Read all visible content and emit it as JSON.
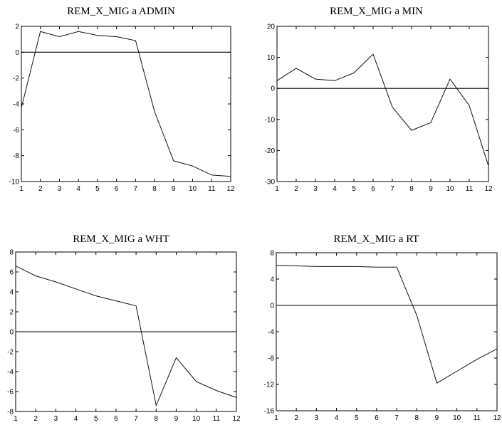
{
  "chart_data": [
    {
      "type": "line",
      "title": "REM_X_MIG a ADMIN",
      "x": [
        1,
        2,
        3,
        4,
        5,
        6,
        7,
        8,
        9,
        10,
        11,
        12
      ],
      "values": [
        -4.3,
        1.6,
        1.2,
        1.6,
        1.3,
        1.2,
        0.9,
        -4.6,
        -8.4,
        -8.8,
        -9.5,
        -9.6
      ],
      "ylim": [
        -10,
        2
      ],
      "yticks": [
        -10,
        -8,
        -6,
        -4,
        -2,
        0,
        2
      ],
      "xticks": [
        1,
        2,
        3,
        4,
        5,
        6,
        7,
        8,
        9,
        10,
        11,
        12
      ],
      "zero_line": true,
      "grid": false
    },
    {
      "type": "line",
      "title": "REM_X_MIG a MIN",
      "x": [
        1,
        2,
        3,
        4,
        5,
        6,
        7,
        8,
        9,
        10,
        11,
        12
      ],
      "values": [
        2.5,
        6.5,
        3.0,
        2.5,
        5.0,
        11.0,
        -6.0,
        -13.5,
        -11.0,
        3.0,
        -5.5,
        -25.0
      ],
      "ylim": [
        -30,
        20
      ],
      "yticks": [
        -30,
        -20,
        -10,
        0,
        10,
        20
      ],
      "xticks": [
        1,
        2,
        3,
        4,
        5,
        6,
        7,
        8,
        9,
        10,
        11,
        12
      ],
      "zero_line": true,
      "grid": false
    },
    {
      "type": "line",
      "title": "REM_X_MIG a WHT",
      "x": [
        1,
        2,
        3,
        4,
        5,
        6,
        7,
        8,
        9,
        10,
        11,
        12
      ],
      "values": [
        6.6,
        5.6,
        5.0,
        4.3,
        3.6,
        3.1,
        2.6,
        -7.4,
        -2.6,
        -5.0,
        -5.9,
        -6.6
      ],
      "ylim": [
        -8,
        8
      ],
      "yticks": [
        -8,
        -6,
        -4,
        -2,
        0,
        2,
        4,
        6,
        8
      ],
      "xticks": [
        1,
        2,
        3,
        4,
        5,
        6,
        7,
        8,
        9,
        10,
        11,
        12
      ],
      "zero_line": true,
      "grid": false
    },
    {
      "type": "line",
      "title": "REM_X_MIG a RT",
      "x": [
        1,
        2,
        3,
        4,
        5,
        6,
        7,
        8,
        9,
        10,
        11,
        12
      ],
      "values": [
        6.1,
        6.0,
        5.9,
        5.9,
        5.9,
        5.8,
        5.8,
        -1.5,
        -11.8,
        -10.0,
        -8.2,
        -6.6
      ],
      "ylim": [
        -16,
        8
      ],
      "yticks": [
        -16,
        -12,
        -8,
        -4,
        0,
        4,
        8
      ],
      "xticks": [
        1,
        2,
        3,
        4,
        5,
        6,
        7,
        8,
        9,
        10,
        11,
        12
      ],
      "zero_line": true,
      "grid": false
    }
  ]
}
